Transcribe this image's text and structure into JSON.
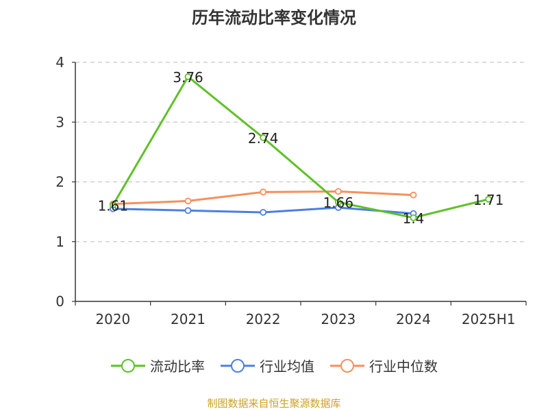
{
  "title": "历年流动比率变化情况",
  "source_note": "制图数据来自恒生聚源数据库",
  "colors": {
    "current_ratio": "#5ec126",
    "industry_mean": "#4d7fe0",
    "industry_median": "#f5905c",
    "grid": "#c8c8c8",
    "axis": "#333333"
  },
  "chart_data": {
    "type": "line",
    "title": "历年流动比率变化情况",
    "xlabel": "",
    "ylabel": "",
    "categories": [
      "2020",
      "2021",
      "2022",
      "2023",
      "2024",
      "2025H1"
    ],
    "ylim": [
      0,
      4
    ],
    "yticks": [
      0,
      1,
      2,
      3,
      4
    ],
    "grid": true,
    "legend_position": "bottom",
    "series": [
      {
        "name": "流动比率",
        "key": "current_ratio",
        "values": [
          1.61,
          3.76,
          2.74,
          1.66,
          1.4,
          1.71
        ],
        "data_labels": [
          "1.61",
          "3.76",
          "2.74",
          "1.66",
          "1.4",
          "1.71"
        ]
      },
      {
        "name": "行业均值",
        "key": "industry_mean",
        "values": [
          1.55,
          1.52,
          1.49,
          1.57,
          1.47,
          null
        ]
      },
      {
        "name": "行业中位数",
        "key": "industry_median",
        "values": [
          1.63,
          1.68,
          1.83,
          1.84,
          1.78,
          null
        ]
      }
    ]
  }
}
